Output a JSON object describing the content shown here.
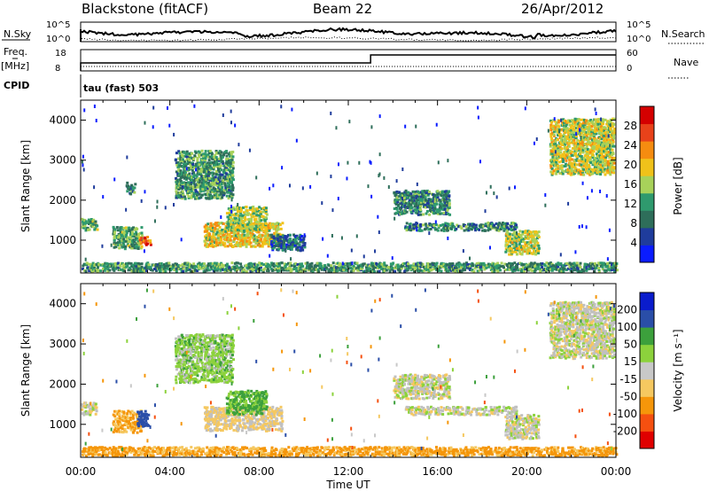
{
  "header": {
    "station": "Blackstone (fitACF)",
    "beam": "Beam 22",
    "date": "26/Apr/2012"
  },
  "labels": {
    "nsky": "N.Sky",
    "nsearch": "N.Search",
    "freq": "Freq.",
    "mhz": "[MHz]",
    "nave": "Nave",
    "cpid": "CPID",
    "cpid_value": "tau (fast) 503",
    "nsky_tick_top": "10^5",
    "nsky_tick_bottom": "10^0",
    "nsearch_tick_top": "10^5",
    "nsearch_tick_bottom": "10^0",
    "freq_tick_top": "18",
    "freq_tick_bottom": "8",
    "nave_tick_top": "60",
    "nave_tick_bottom": "0"
  },
  "colors": {
    "power": [
      "#0a1cff",
      "#1f3c9c",
      "#2e6e5a",
      "#2f9a6e",
      "#a8d25a",
      "#f0c21a",
      "#f58c10",
      "#e8421a",
      "#d40000"
    ],
    "velocity": [
      "#e00000",
      "#f55010",
      "#f5960a",
      "#f5c860",
      "#c8c8c8",
      "#8cd23c",
      "#3ca03c",
      "#2a4ea8",
      "#0a1ccc"
    ],
    "ground": "#c0c0c0"
  },
  "chart_data": [
    {
      "type": "heatmap",
      "panel": "power",
      "title": "",
      "xlabel": "",
      "ylabel": "Slant Range [km]",
      "xlim": [
        "00:00",
        "24:00"
      ],
      "ylim": [
        180,
        4500
      ],
      "x_ticks": [
        "00:00",
        "04:00",
        "08:00",
        "12:00",
        "16:00",
        "20:00",
        "00:00"
      ],
      "y_ticks": [
        1000,
        2000,
        3000,
        4000
      ],
      "colorbar": {
        "label": "Power [dB]",
        "ticks": [
          "4",
          "8",
          "12",
          "16",
          "20",
          "24",
          "28"
        ],
        "range": [
          0,
          30
        ]
      },
      "echo_regions": [
        {
          "t": [
            0.0,
            0.7
          ],
          "r": [
            1200,
            1500
          ],
          "level": 0.4
        },
        {
          "t": [
            1.4,
            2.7
          ],
          "r": [
            750,
            1300
          ],
          "level": 0.4
        },
        {
          "t": [
            2.6,
            3.1
          ],
          "r": [
            850,
            1050
          ],
          "level": 0.8
        },
        {
          "t": [
            2.0,
            2.4
          ],
          "r": [
            2100,
            2400
          ],
          "level": 0.3
        },
        {
          "t": [
            4.2,
            6.8
          ],
          "r": [
            2000,
            3200
          ],
          "level": 0.35
        },
        {
          "t": [
            5.5,
            9.0
          ],
          "r": [
            800,
            1400
          ],
          "level": 0.6
        },
        {
          "t": [
            6.5,
            8.3
          ],
          "r": [
            1200,
            1800
          ],
          "level": 0.5
        },
        {
          "t": [
            8.5,
            10.0
          ],
          "r": [
            700,
            1100
          ],
          "level": 0.2
        },
        {
          "t": [
            14.0,
            16.5
          ],
          "r": [
            1600,
            2200
          ],
          "level": 0.3
        },
        {
          "t": [
            14.5,
            19.5
          ],
          "r": [
            1200,
            1400
          ],
          "level": 0.3
        },
        {
          "t": [
            19.0,
            20.5
          ],
          "r": [
            600,
            1200
          ],
          "level": 0.55
        },
        {
          "t": [
            21.0,
            23.9
          ],
          "r": [
            2600,
            4000
          ],
          "level": 0.55
        },
        {
          "t": [
            0.0,
            24.0
          ],
          "r": [
            180,
            400
          ],
          "level": 0.35
        }
      ]
    },
    {
      "type": "heatmap",
      "panel": "velocity",
      "title": "",
      "xlabel": "Time UT",
      "ylabel": "Slant Range [km]",
      "xlim": [
        "00:00",
        "24:00"
      ],
      "ylim": [
        180,
        4500
      ],
      "x_ticks": [
        "00:00",
        "04:00",
        "08:00",
        "12:00",
        "16:00",
        "20:00",
        "00:00"
      ],
      "y_ticks": [
        1000,
        2000,
        3000,
        4000
      ],
      "colorbar": {
        "label": "Velocity [m s⁻¹]",
        "ticks": [
          "-200",
          "-100",
          "-50",
          "-15",
          "15",
          "50",
          "100",
          "200"
        ],
        "range": [
          -250,
          250
        ]
      },
      "echo_regions": [
        {
          "t": [
            0.0,
            0.7
          ],
          "r": [
            1200,
            1500
          ],
          "vel": 0
        },
        {
          "t": [
            1.4,
            2.7
          ],
          "r": [
            750,
            1300
          ],
          "vel": -60
        },
        {
          "t": [
            2.5,
            3.0
          ],
          "r": [
            900,
            1300
          ],
          "vel": 150
        },
        {
          "t": [
            4.2,
            6.8
          ],
          "r": [
            2000,
            3200
          ],
          "vel": 30
        },
        {
          "t": [
            5.5,
            9.0
          ],
          "r": [
            800,
            1400
          ],
          "vel": -20
        },
        {
          "t": [
            6.5,
            8.3
          ],
          "r": [
            1200,
            1800
          ],
          "vel": 60
        },
        {
          "t": [
            14.0,
            16.5
          ],
          "r": [
            1600,
            2200
          ],
          "vel": 0
        },
        {
          "t": [
            14.5,
            19.5
          ],
          "r": [
            1200,
            1400
          ],
          "vel": 5
        },
        {
          "t": [
            19.0,
            20.5
          ],
          "r": [
            600,
            1200
          ],
          "vel": 0
        },
        {
          "t": [
            21.0,
            23.9
          ],
          "r": [
            2600,
            4000
          ],
          "vel": 0
        },
        {
          "t": [
            0.0,
            24.0
          ],
          "r": [
            180,
            400
          ],
          "vel": -60
        }
      ]
    }
  ]
}
